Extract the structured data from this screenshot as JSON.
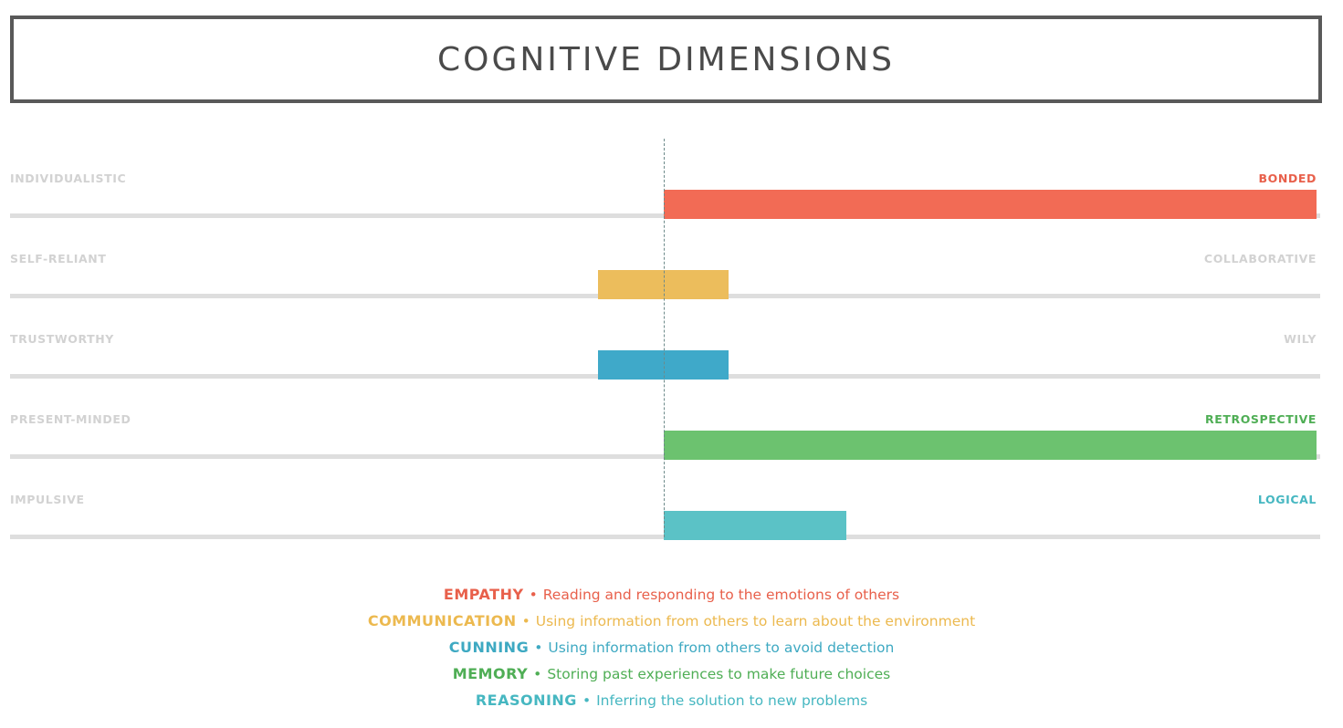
{
  "title": "COGNITIVE DIMENSIONS",
  "chart_data": {
    "type": "bar",
    "orientation": "horizontal",
    "note_scale": "bipolar scale, center = 0, left end = -1, right end = +1",
    "xlim": [
      -1,
      1
    ],
    "rows": [
      {
        "left_label": "INDIVIDUALISTIC",
        "right_label": "BONDED",
        "start": 0,
        "end": 1.0,
        "color": "#f26b55",
        "right_label_color": "#e8604b"
      },
      {
        "left_label": "SELF-RELIANT",
        "right_label": "COLLABORATIVE",
        "start": -0.1,
        "end": 0.1,
        "color": "#ecbd5c",
        "right_label_color": "#d2d2d2"
      },
      {
        "left_label": "TRUSTWORTHY",
        "right_label": "WILY",
        "start": -0.1,
        "end": 0.1,
        "color": "#3fa9c9",
        "right_label_color": "#d2d2d2"
      },
      {
        "left_label": "PRESENT-MINDED",
        "right_label": "RETROSPECTIVE",
        "start": 0,
        "end": 1.0,
        "color": "#6cc26f",
        "right_label_color": "#4fae55"
      },
      {
        "left_label": "IMPULSIVE",
        "right_label": "LOGICAL",
        "start": 0,
        "end": 0.28,
        "color": "#5bc2c6",
        "right_label_color": "#46b7c1"
      }
    ]
  },
  "legend": [
    {
      "name": "EMPATHY",
      "desc": "Reading and responding to the emotions of others",
      "color": "#e8604b"
    },
    {
      "name": "COMMUNICATION",
      "desc": "Using information from others to learn about the environment",
      "color": "#ecb94f"
    },
    {
      "name": "CUNNING",
      "desc": "Using information from others to avoid detection",
      "color": "#3ea9c2"
    },
    {
      "name": "MEMORY",
      "desc": "Storing past experiences to make future choices",
      "color": "#4fae55"
    },
    {
      "name": "REASONING",
      "desc": "Inferring the solution to new problems",
      "color": "#46b7c1"
    }
  ],
  "separator": "•"
}
